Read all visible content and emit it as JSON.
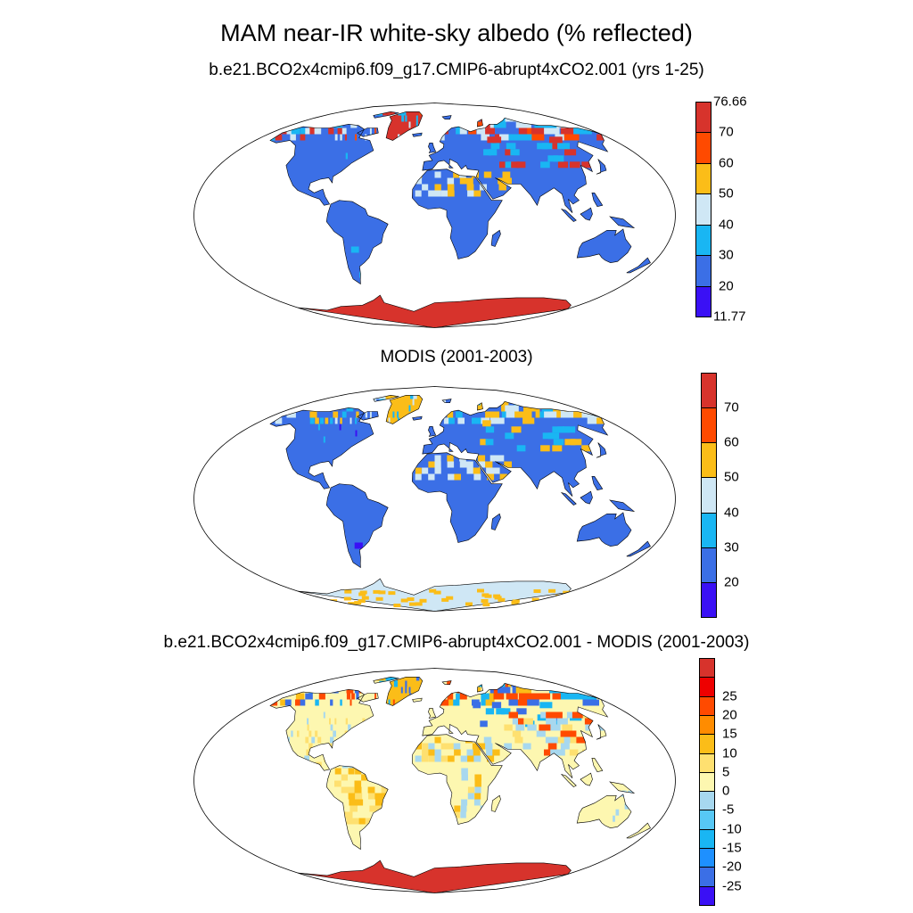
{
  "title": "MAM near-IR white-sky albedo (% reflected)",
  "panels": [
    {
      "title": "b.e21.BCO2x4cmip6.f09_g17.CMIP6-abrupt4xCO2.001 (yrs 1-25)",
      "colorbar": {
        "colors": [
          "#3a10f5",
          "#3b6fe6",
          "#19b6f3",
          "#cfe7f5",
          "#fbbd18",
          "#ff4a00",
          "#d7332c"
        ],
        "labels": [
          "20",
          "30",
          "40",
          "50",
          "60",
          "70"
        ],
        "max_label": "76.66",
        "min_label": "11.77"
      },
      "land_color": "#3b6fe6",
      "antarctica_color": "#d7332c",
      "greenland_color": "#d7332c",
      "desert_colors": [
        "#cfe7f5",
        "#fbbd18"
      ],
      "arctic_colors": [
        "#19b6f3",
        "#d7332c",
        "#ff4a00",
        "#cfe7f5"
      ]
    },
    {
      "title": "MODIS (2001-2003)",
      "colorbar": {
        "colors": [
          "#3a10f5",
          "#3b6fe6",
          "#19b6f3",
          "#cfe7f5",
          "#fbbd18",
          "#ff4a00",
          "#d7332c"
        ],
        "labels": [
          "20",
          "30",
          "40",
          "50",
          "60",
          "70"
        ]
      },
      "land_color": "#3b6fe6",
      "antarctica_color": "#cfe7f5",
      "greenland_color": "#fbbd18",
      "desert_colors": [
        "#cfe7f5",
        "#fbbd18"
      ],
      "arctic_colors": [
        "#19b6f3",
        "#fbbd18",
        "#cfe7f5"
      ]
    },
    {
      "title": "b.e21.BCO2x4cmip6.f09_g17.CMIP6-abrupt4xCO2.001 - MODIS (2001-2003)",
      "colorbar": {
        "colors": [
          "#3a10f5",
          "#3b6fe6",
          "#1e90ff",
          "#19b6f3",
          "#57c8f5",
          "#a7d8ef",
          "#fdf7b0",
          "#fee070",
          "#fbbd18",
          "#ff8c00",
          "#ff4a00",
          "#ee0000",
          "#d7332c"
        ],
        "labels": [
          "-25",
          "-20",
          "-15",
          "-10",
          "-5",
          "0",
          "5",
          "10",
          "15",
          "20",
          "25"
        ]
      },
      "land_color": "#fdf7b0",
      "antarctica_color": "#d7332c",
      "greenland_color": "#fbbd18",
      "desert_colors": [
        "#a7d8ef",
        "#fbbd18",
        "#fee070"
      ],
      "arctic_colors": [
        "#3b6fe6",
        "#19b6f3",
        "#ff4a00",
        "#fbbd18"
      ]
    }
  ]
}
